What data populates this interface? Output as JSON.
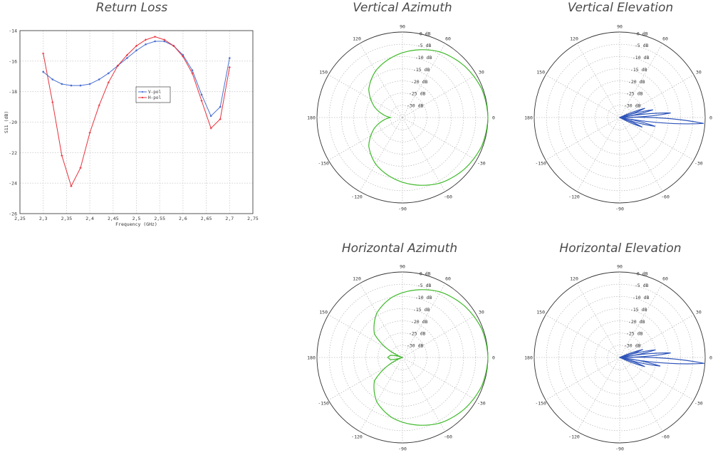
{
  "colors": {
    "vpol": "#4a6fd1",
    "hpol": "#e8323c",
    "azimuth": "#3fba2a",
    "elevation": "#2f55bb"
  },
  "chart_data": [
    {
      "type": "line",
      "title": "Return Loss",
      "xlabel": "Frequency (GHz)",
      "ylabel": "S11 (dB)",
      "xlim": [
        2.25,
        2.75
      ],
      "ylim": [
        -26,
        -14
      ],
      "xticks": [
        "2,25",
        "2,3",
        "2,35",
        "2,4",
        "2,45",
        "2,5",
        "2,55",
        "2,6",
        "2,65",
        "2,7",
        "2,75"
      ],
      "yticks": [
        "-14",
        "-16",
        "-18",
        "-20",
        "-22",
        "-24",
        "-26"
      ],
      "grid": true,
      "legend": "right",
      "x": [
        2.3,
        2.32,
        2.34,
        2.36,
        2.38,
        2.4,
        2.42,
        2.44,
        2.46,
        2.48,
        2.5,
        2.52,
        2.54,
        2.56,
        2.58,
        2.6,
        2.62,
        2.64,
        2.66,
        2.68,
        2.7
      ],
      "series": [
        {
          "name": "V-pol",
          "color": "#4a6fd1",
          "marker": "circle",
          "values": [
            -16.7,
            -17.2,
            -17.5,
            -17.6,
            -17.6,
            -17.5,
            -17.2,
            -16.8,
            -16.3,
            -15.8,
            -15.3,
            -14.9,
            -14.7,
            -14.7,
            -15.0,
            -15.6,
            -16.6,
            -18.2,
            -19.6,
            -19.0,
            -15.8
          ]
        },
        {
          "name": "H-pol",
          "color": "#e8323c",
          "marker": "star",
          "values": [
            -15.5,
            -18.7,
            -22.2,
            -24.2,
            -23.0,
            -20.7,
            -18.9,
            -17.4,
            -16.3,
            -15.6,
            -15.0,
            -14.6,
            -14.4,
            -14.6,
            -15.0,
            -15.7,
            -16.8,
            -18.6,
            -20.4,
            -19.8,
            -16.4
          ]
        }
      ]
    },
    {
      "type": "polar",
      "title": "Vertical Azimuth",
      "rlim_db": [
        -35,
        0
      ],
      "ring_labels": [
        "0 dB",
        "-5 dB",
        "-10 dB",
        "-15 dB",
        "-20 dB",
        "-25 dB",
        "-30 dB"
      ],
      "angle_labels": [
        "90",
        "60",
        "30",
        "0",
        "-30",
        "-60",
        "-90",
        "-120",
        "-150",
        "180",
        "150",
        "120"
      ],
      "series": [
        {
          "color": "#3fba2a",
          "angles_deg": [
            0,
            20,
            40,
            60,
            80,
            100,
            120,
            140,
            160,
            180,
            200,
            220,
            240,
            260,
            280,
            300,
            320,
            340,
            360
          ],
          "gains_db": [
            0,
            -0.5,
            -2,
            -4,
            -7,
            -10,
            -13,
            -17,
            -23,
            -30,
            -23,
            -17,
            -13,
            -10,
            -7,
            -4,
            -2,
            -0.5,
            0
          ]
        }
      ]
    },
    {
      "type": "polar",
      "title": "Vertical Elevation",
      "rlim_db": [
        -35,
        0
      ],
      "ring_labels": [
        "0 dB",
        "-5 dB",
        "-10 dB",
        "-15 dB",
        "-20 dB",
        "-25 dB",
        "-30 dB"
      ],
      "angle_labels": [
        "90",
        "60",
        "30",
        "0",
        "-30",
        "-60",
        "-90",
        "-120",
        "-150",
        "180",
        "150",
        "120"
      ],
      "series": [
        {
          "color": "#2f55bb",
          "lobes": [
            {
              "angle_deg": -4,
              "gain_db": -0.5,
              "width_deg": 6
            },
            {
              "angle_deg": 5,
              "gain_db": -14,
              "width_deg": 5
            },
            {
              "angle_deg": 13,
              "gain_db": -21,
              "width_deg": 5
            },
            {
              "angle_deg": 20,
              "gain_db": -24,
              "width_deg": 5
            },
            {
              "angle_deg": -14,
              "gain_db": -20,
              "width_deg": 5
            },
            {
              "angle_deg": -23,
              "gain_db": -25,
              "width_deg": 5
            }
          ]
        }
      ]
    },
    {
      "type": "polar",
      "title": "Horizontal Azimuth",
      "rlim_db": [
        -35,
        0
      ],
      "ring_labels": [
        "0 dB",
        "-5 dB",
        "-10 dB",
        "-15 dB",
        "-20 dB",
        "-25 dB",
        "-30 dB"
      ],
      "angle_labels": [
        "90",
        "60",
        "30",
        "0",
        "-30",
        "-60",
        "-90",
        "-120",
        "-150",
        "180",
        "150",
        "120"
      ],
      "series": [
        {
          "color": "#3fba2a",
          "angles_deg": [
            0,
            20,
            40,
            60,
            80,
            100,
            120,
            140,
            160,
            170,
            180,
            190,
            200,
            220,
            240,
            260,
            280,
            300,
            320,
            340,
            360
          ],
          "gains_db": [
            0,
            -0.5,
            -2,
            -4,
            -7,
            -10,
            -14,
            -20,
            -35,
            -30,
            -29,
            -30,
            -35,
            -20,
            -14,
            -10,
            -7,
            -4,
            -2,
            -0.5,
            0
          ]
        }
      ]
    },
    {
      "type": "polar",
      "title": "Horizontal Elevation",
      "rlim_db": [
        -35,
        0
      ],
      "ring_labels": [
        "0 dB",
        "-5 dB",
        "-10 dB",
        "-15 dB",
        "-20 dB",
        "-25 dB",
        "-30 dB"
      ],
      "angle_labels": [
        "90",
        "60",
        "30",
        "0",
        "-30",
        "-60",
        "-90",
        "-120",
        "-150",
        "180",
        "150",
        "120"
      ],
      "series": [
        {
          "color": "#2f55bb",
          "lobes": [
            {
              "angle_deg": -4,
              "gain_db": -0.3,
              "width_deg": 6
            },
            {
              "angle_deg": 5,
              "gain_db": -14,
              "width_deg": 5
            },
            {
              "angle_deg": 12,
              "gain_db": -20,
              "width_deg": 5
            },
            {
              "angle_deg": 19,
              "gain_db": -25,
              "width_deg": 5
            },
            {
              "angle_deg": -12,
              "gain_db": -18,
              "width_deg": 5
            },
            {
              "angle_deg": -20,
              "gain_db": -24,
              "width_deg": 5
            }
          ]
        }
      ]
    }
  ]
}
